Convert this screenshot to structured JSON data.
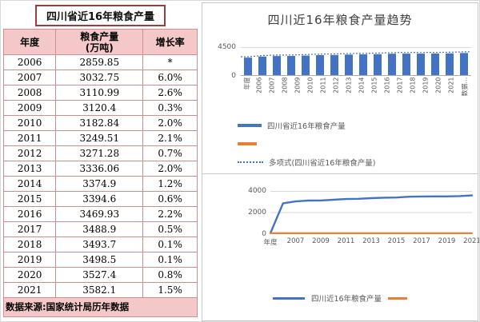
{
  "table": {
    "title": "四川省近16年粮食产量",
    "headers": [
      "年度",
      "粮食产量\n(万吨)",
      "增长率"
    ],
    "rows": [
      [
        "2006",
        "2859.85",
        "*"
      ],
      [
        "2007",
        "3032.75",
        "6.0%"
      ],
      [
        "2008",
        "3110.99",
        "2.6%"
      ],
      [
        "2009",
        "3120.4",
        "0.3%"
      ],
      [
        "2010",
        "3182.84",
        "2.0%"
      ],
      [
        "2011",
        "3249.51",
        "2.1%"
      ],
      [
        "2012",
        "3271.28",
        "0.7%"
      ],
      [
        "2013",
        "3336.06",
        "2.0%"
      ],
      [
        "2014",
        "3374.9",
        "1.2%"
      ],
      [
        "2015",
        "3394.6",
        "0.6%"
      ],
      [
        "2016",
        "3469.93",
        "2.2%"
      ],
      [
        "2017",
        "3488.9",
        "0.5%"
      ],
      [
        "2018",
        "3493.7",
        "0.1%"
      ],
      [
        "2019",
        "3498.5",
        "0.1%"
      ],
      [
        "2020",
        "3527.4",
        "0.8%"
      ],
      [
        "2021",
        "3582.1",
        "1.5%"
      ]
    ],
    "source": "数据来源:国家统计局历年数据"
  },
  "charts": {
    "title": "四川近16年粮食产量趋势",
    "legend_top": [
      "四川省近16年粮食产量",
      "",
      "多项式(四川省近16年粮食产量)"
    ],
    "legend_bottom": [
      "四川近16年粮食产量",
      ""
    ]
  },
  "chart_data": [
    {
      "type": "bar",
      "title": "四川近16年粮食产量趋势",
      "categories": [
        "2006",
        "2007",
        "2008",
        "2009",
        "2010",
        "2011",
        "2012",
        "2013",
        "2014",
        "2015",
        "2016",
        "2017",
        "2018",
        "2019",
        "2020",
        "2021"
      ],
      "x_axis_prefix_label": "年度",
      "x_axis_suffix_label": "数据…",
      "series": [
        {
          "name": "四川省近16年粮食产量",
          "type": "bar",
          "color": "#4472C4",
          "values": [
            2859.85,
            3032.75,
            3110.99,
            3120.4,
            3182.84,
            3249.51,
            3271.28,
            3336.06,
            3374.9,
            3394.6,
            3469.93,
            3488.9,
            3493.7,
            3498.5,
            3527.4,
            3582.1
          ]
        },
        {
          "name": "",
          "type": "bar",
          "color": "#ED7D31",
          "values": [
            0,
            6.0,
            2.6,
            0.3,
            2.0,
            2.1,
            0.7,
            2.0,
            1.2,
            0.6,
            2.2,
            0.5,
            0.1,
            0.1,
            0.8,
            1.5
          ]
        },
        {
          "name": "多项式(四川省近16年粮食产量)",
          "type": "dotted-trendline",
          "color": "#4472C4"
        }
      ],
      "ylim": [
        0,
        4500
      ],
      "ytick_labels": [
        "4500",
        "0"
      ],
      "grid": true,
      "legend_position": "bottom"
    },
    {
      "type": "line",
      "categories": [
        "年度",
        "2006",
        "2007",
        "2008",
        "2009",
        "2010",
        "2011",
        "2012",
        "2013",
        "2014",
        "2015",
        "2016",
        "2017",
        "2018",
        "2019",
        "2020",
        "2021"
      ],
      "x_tick_labels": [
        "年度",
        "2007",
        "2009",
        "2011",
        "2013",
        "2015",
        "2017",
        "2019",
        "2021"
      ],
      "x_tick_positions": [
        0,
        2,
        4,
        6,
        8,
        10,
        12,
        14,
        16
      ],
      "series": [
        {
          "name": "四川近16年粮食产量",
          "color": "#4472C4",
          "values": [
            0,
            2859.85,
            3032.75,
            3110.99,
            3120.4,
            3182.84,
            3249.51,
            3271.28,
            3336.06,
            3374.9,
            3394.6,
            3469.93,
            3488.9,
            3493.7,
            3498.5,
            3527.4,
            3582.1
          ]
        },
        {
          "name": "",
          "color": "#ED7D31",
          "values": [
            0,
            0,
            6.0,
            2.6,
            0.3,
            2.0,
            2.1,
            0.7,
            2.0,
            1.2,
            0.6,
            2.2,
            0.5,
            0.1,
            0.1,
            0.8,
            1.5
          ]
        }
      ],
      "ylim": [
        0,
        4000
      ],
      "ytick_labels": [
        "4000",
        "2000",
        "0"
      ],
      "grid": true,
      "legend_position": "bottom"
    }
  ],
  "colors": {
    "bar_blue": "#4472C4",
    "accent_orange": "#ED7D31",
    "table_header_pink": "#F4C8C8",
    "table_border_red": "#D08F8F",
    "axis_text_gray": "#595959",
    "grid_gray": "#D9D9D9"
  }
}
